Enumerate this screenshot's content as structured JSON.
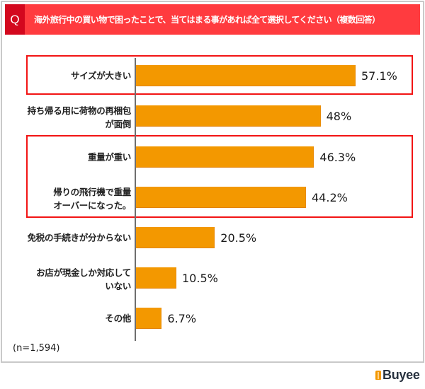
{
  "header": {
    "q_mark": "Q",
    "title": "海外旅行中の買い物で困ったことで、当てはまる事があれば全て選択してください（複数回答）"
  },
  "rows": [
    {
      "lines": [
        "サイズが大きい"
      ]
    },
    {
      "lines": [
        "持ち帰る用に荷物の再梱包",
        "が面倒"
      ]
    },
    {
      "lines": [
        "重量が重い"
      ]
    },
    {
      "lines": [
        "帰りの飛行機で重量",
        "オーバーになった。"
      ]
    },
    {
      "lines": [
        "免税の手続きが分からない"
      ]
    },
    {
      "lines": [
        "お店が現金しか対応して",
        "いない"
      ]
    },
    {
      "lines": [
        "その他"
      ]
    }
  ],
  "footer": {
    "sample_size": "(n=1,594)",
    "brand": "Buyee"
  },
  "colors": {
    "bar": "#f39800",
    "header": "#ff3b3f",
    "header_q": "#d3081e",
    "highlight_box": "#f21414"
  },
  "chart_data": {
    "type": "bar",
    "orientation": "horizontal",
    "title": "海外旅行中の買い物で困ったことで、当てはまる事があれば全て選択してください（複数回答）",
    "categories": [
      "サイズが大きい",
      "持ち帰る用に荷物の再梱包が面倒",
      "重量が重い",
      "帰りの飛行機で重量オーバーになった。",
      "免税の手続きが分からない",
      "お店が現金しか対応していない",
      "その他"
    ],
    "values": [
      57.1,
      48,
      46.3,
      44.2,
      20.5,
      10.5,
      6.7
    ],
    "value_labels": [
      "57.1%",
      "48%",
      "46.3%",
      "44.2%",
      "20.5%",
      "10.5%",
      "6.7%"
    ],
    "unit": "%",
    "xlabel": "",
    "ylabel": "",
    "grid": false,
    "legend": null,
    "annotations": [
      "(n=1,594)"
    ],
    "highlighted_categories": [
      [
        "サイズが大きい"
      ],
      [
        "重量が重い",
        "帰りの飛行機で重量オーバーになった。"
      ]
    ]
  }
}
